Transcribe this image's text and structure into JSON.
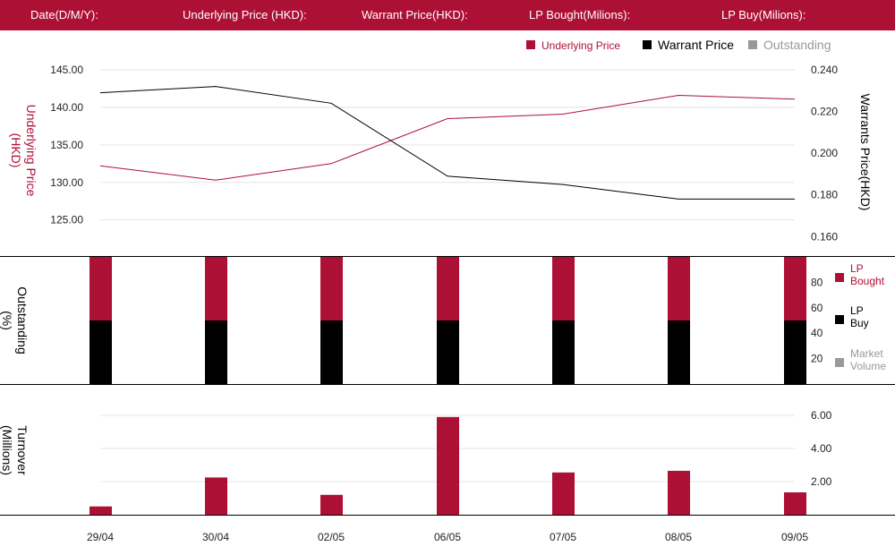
{
  "header": {
    "date_label": "Date(D/M/Y):",
    "underlying_label": "Underlying Price (HKD):",
    "warrant_label": "Warrant  Price(HKD):",
    "lp_bought_label": "LP Bought(Milions):",
    "lp_buy_label": "LP Buy(Milions):"
  },
  "colors": {
    "brand": "#ad1035",
    "black": "#000000",
    "grey": "#999999",
    "grid": "#e3e3e3"
  },
  "chart_data": [
    {
      "type": "line",
      "x": [
        "29/04",
        "30/04",
        "02/05",
        "06/05",
        "07/05",
        "08/05",
        "09/05"
      ],
      "series": [
        {
          "name": "Underlying Price",
          "axis": "left",
          "color": "#ad1035",
          "values": [
            132.2,
            130.3,
            132.5,
            138.5,
            139.1,
            141.6,
            141.1
          ]
        },
        {
          "name": "Warrant  Price",
          "axis": "right",
          "color": "#000000",
          "values": [
            0.229,
            0.232,
            0.224,
            0.189,
            0.185,
            0.178,
            0.178
          ]
        }
      ],
      "legend": [
        {
          "label": "Underlying Price",
          "color": "#ad1035"
        },
        {
          "label": "Warrant  Price",
          "color": "#000000"
        },
        {
          "label": "Outstanding",
          "color": "#999999"
        }
      ],
      "legend_position": "top-right",
      "ylabel_left": "Underlying Price (HKD)",
      "ylabel_right": "Warrants  Price(HKD)",
      "yticks_left": [
        "145.00",
        "140.00",
        "135.00",
        "130.00",
        "125.00"
      ],
      "yticks_right": [
        "0.240",
        "0.220",
        "0.200",
        "0.180",
        "0.160"
      ],
      "ylim_left": [
        120,
        145
      ],
      "ylim_right": [
        0.15,
        0.24
      ],
      "grid": true
    },
    {
      "type": "bar",
      "stacked": true,
      "x": [
        "29/04",
        "30/04",
        "02/05",
        "06/05",
        "07/05",
        "08/05",
        "09/05"
      ],
      "series": [
        {
          "name": "LP Buy",
          "color": "#000000",
          "values": [
            50,
            50,
            50,
            50,
            50,
            50,
            50
          ]
        },
        {
          "name": "LP Bought",
          "color": "#ad1035",
          "values": [
            50,
            50,
            50,
            50,
            50,
            50,
            50
          ]
        }
      ],
      "legend": [
        {
          "label": "LP Bought",
          "color": "#ad1035"
        },
        {
          "label": "LP Buy",
          "color": "#000000"
        },
        {
          "label": "Market Volume",
          "color": "#999999"
        }
      ],
      "legend_position": "right",
      "ylabel": "Outstanding (%)",
      "yticks": [
        "80",
        "60",
        "40",
        "20"
      ],
      "ylim": [
        0,
        100
      ]
    },
    {
      "type": "bar",
      "x": [
        "29/04",
        "30/04",
        "02/05",
        "06/05",
        "07/05",
        "08/05",
        "09/05"
      ],
      "series": [
        {
          "name": "Turnover",
          "color": "#ad1035",
          "values": [
            0.5,
            2.25,
            1.2,
            5.9,
            2.55,
            2.65,
            1.35
          ]
        }
      ],
      "ylabel": "Turnover (Millions)",
      "yticks": [
        "6.00",
        "4.00",
        "2.00"
      ],
      "ylim": [
        0,
        6
      ],
      "grid": true
    }
  ]
}
